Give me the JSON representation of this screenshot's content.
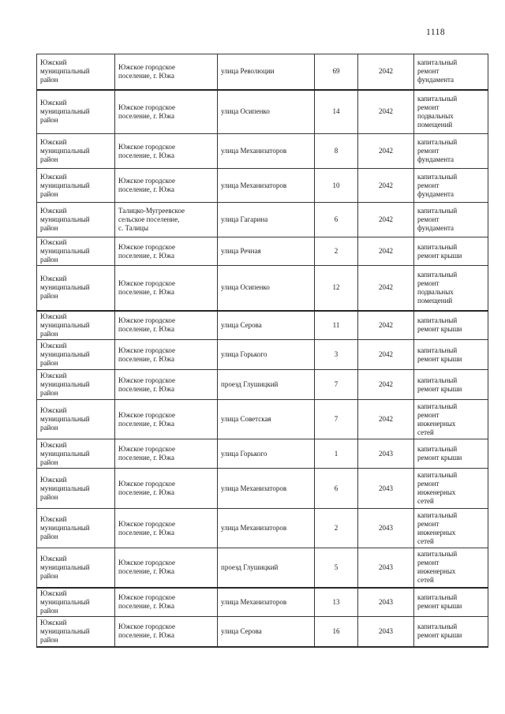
{
  "page_number": "1118",
  "table": {
    "rows": [
      {
        "district": "Южский\nмуниципальный\nрайон",
        "settlement": "Южское городское\nпоселение, г. Южа",
        "street": "улица Революции",
        "house": "69",
        "year": "2042",
        "work": "капитальный\nремонт\nфундамента"
      },
      {
        "district": "Южский\nмуниципальный\nрайон",
        "settlement": "Южское городское\nпоселение, г. Южа",
        "street": "улица Осипенко",
        "house": "14",
        "year": "2042",
        "work": "капитальный\nремонт\nподвальных\nпомещений"
      },
      {
        "district": "Южский\nмуниципальный\nрайон",
        "settlement": "Южское городское\nпоселение, г. Южа",
        "street": "улица Механизаторов",
        "house": "8",
        "year": "2042",
        "work": "капитальный\nремонт\nфундамента"
      },
      {
        "district": "Южский\nмуниципальный\nрайон",
        "settlement": "Южское городское\nпоселение, г. Южа",
        "street": "улица Механизаторов",
        "house": "10",
        "year": "2042",
        "work": "капитальный\nремонт\nфундамента"
      },
      {
        "district": "Южский\nмуниципальный\nрайон",
        "settlement": "Талицко-Мугреевское\nсельское поселение,\nс. Талицы",
        "street": "улица Гагарина",
        "house": "6",
        "year": "2042",
        "work": "капитальный\nремонт\nфундамента"
      },
      {
        "district": "Южский\nмуниципальный\nрайон",
        "settlement": "Южское городское\nпоселение, г. Южа",
        "street": "улица Речная",
        "house": "2",
        "year": "2042",
        "work": "капитальный\nремонт крыши"
      },
      {
        "district": "Южский\nмуниципальный\nрайон",
        "settlement": "Южское городское\nпоселение, г. Южа",
        "street": "улица Осипенко",
        "house": "12",
        "year": "2042",
        "work": "капитальный\nремонт\nподвальных\nпомещений"
      },
      {
        "district": "Южский\nмуниципальный\nрайон",
        "settlement": "Южское городское\nпоселение, г. Южа",
        "street": "улица Серова",
        "house": "11",
        "year": "2042",
        "work": "капитальный\nремонт крыши"
      },
      {
        "district": "Южский\nмуниципальный\nрайон",
        "settlement": "Южское городское\nпоселение, г. Южа",
        "street": "улица Горького",
        "house": "3",
        "year": "2042",
        "work": "капитальный\nремонт крыши"
      },
      {
        "district": "Южский\nмуниципальный\nрайон",
        "settlement": "Южское городское\nпоселение, г. Южа",
        "street": "проезд Глушицкий",
        "house": "7",
        "year": "2042",
        "work": "капитальный\nремонт крыши"
      },
      {
        "district": "Южский\nмуниципальный\nрайон",
        "settlement": "Южское городское\nпоселение, г. Южа",
        "street": "улица Советская",
        "house": "7",
        "year": "2042",
        "work": "капитальный\nремонт\nинженерных\nсетей"
      },
      {
        "district": "Южский\nмуниципальный\nрайон",
        "settlement": "Южское городское\nпоселение, г. Южа",
        "street": "улица Горького",
        "house": "1",
        "year": "2043",
        "work": "капитальный\nремонт крыши"
      },
      {
        "district": "Южский\nмуниципальный\nрайон",
        "settlement": "Южское городское\nпоселение, г. Южа",
        "street": "улица Механизаторов",
        "house": "6",
        "year": "2043",
        "work": "капитальный\nремонт\nинженерных\nсетей"
      },
      {
        "district": "Южский\nмуниципальный\nрайон",
        "settlement": "Южское городское\nпоселение, г. Южа",
        "street": "улица Механизаторов",
        "house": "2",
        "year": "2043",
        "work": "капитальный\nремонт\nинженерных\nсетей"
      },
      {
        "district": "Южский\nмуниципальный\nрайон",
        "settlement": "Южское городское\nпоселение, г. Южа",
        "street": "проезд Глушицкий",
        "house": "5",
        "year": "2043",
        "work": "капитальный\nремонт\nинженерных\nсетей"
      },
      {
        "district": "Южский\nмуниципальный\nрайон",
        "settlement": "Южское городское\nпоселение, г. Южа",
        "street": "улица Механизаторов",
        "house": "13",
        "year": "2043",
        "work": "капитальный\nремонт крыши"
      },
      {
        "district": "Южский\nмуниципальный\nрайон",
        "settlement": "Южское городское\nпоселение, г. Южа",
        "street": "улица Серова",
        "house": "16",
        "year": "2043",
        "work": "капитальный\nремонт крыши"
      }
    ]
  }
}
